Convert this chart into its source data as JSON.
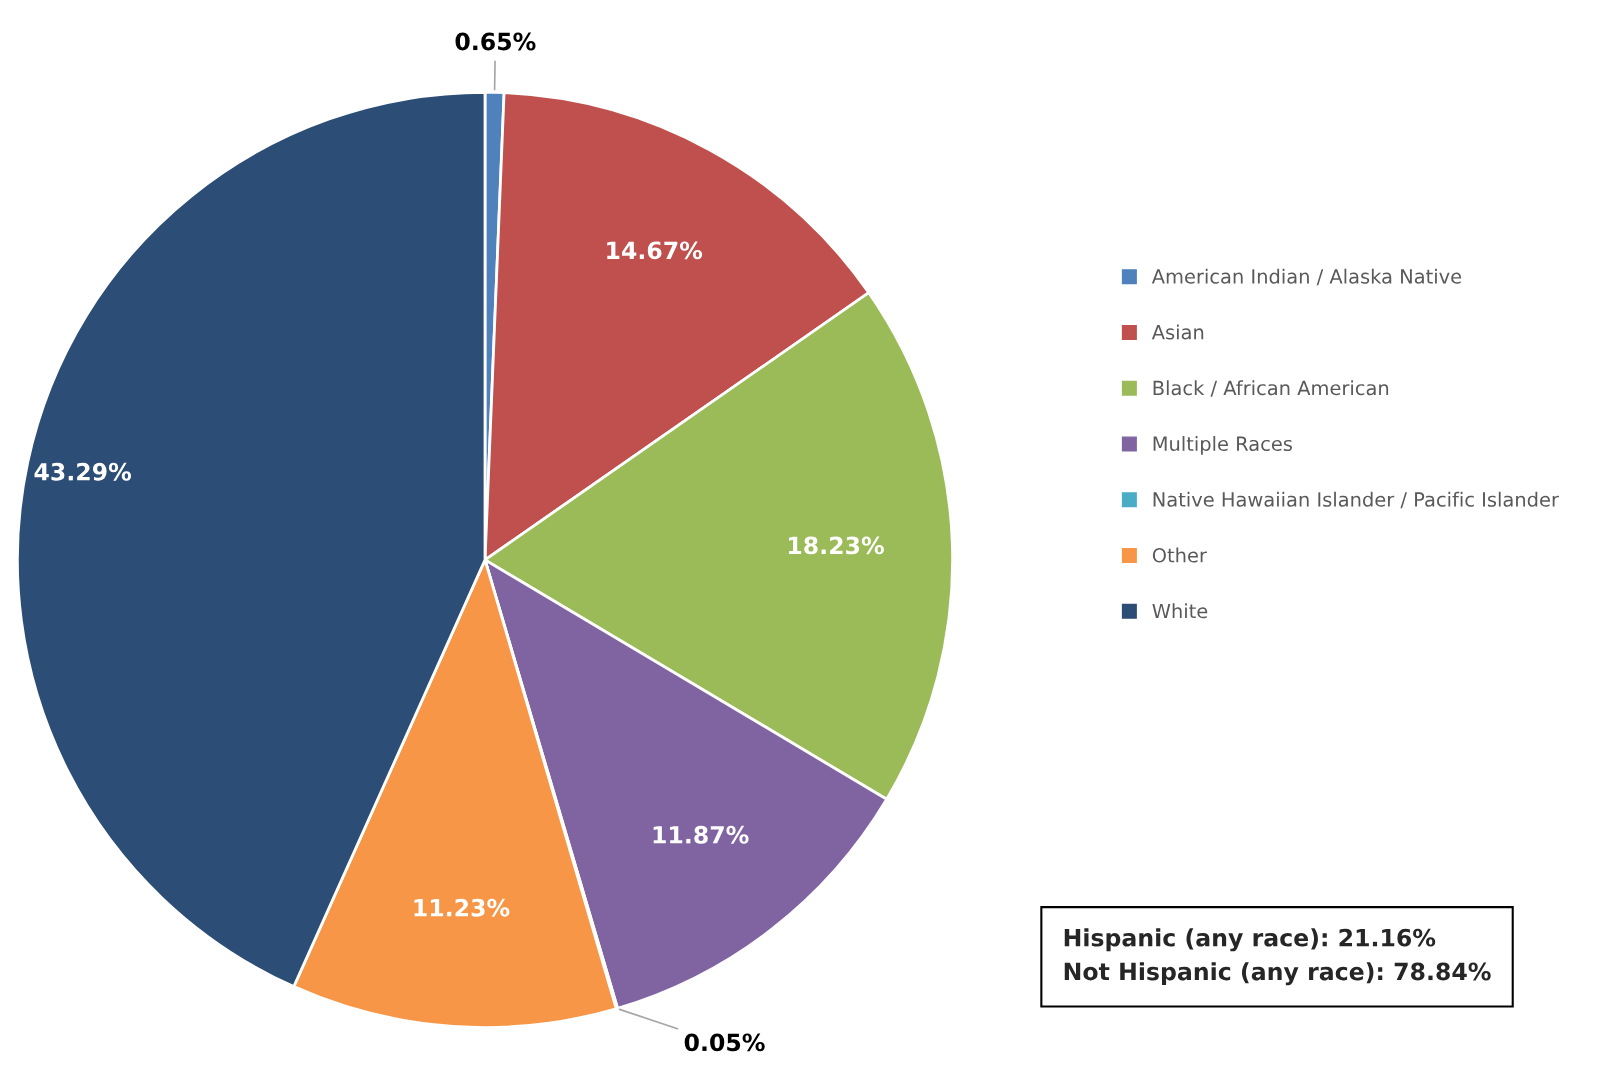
{
  "chart_data": {
    "type": "pie",
    "categories": [
      "American Indian / Alaska Native",
      "Asian",
      "Black / African American",
      "Multiple Races",
      "Native Hawaiian Islander / Pacific Islander",
      "Other",
      "White"
    ],
    "values": [
      0.65,
      14.67,
      18.23,
      11.87,
      0.05,
      11.23,
      43.29
    ],
    "colors": [
      "#4f81bd",
      "#c0504d",
      "#9bbb59",
      "#8064a2",
      "#4bacc6",
      "#f79646",
      "#2c4d75"
    ],
    "value_labels": [
      "0.65%",
      "14.67%",
      "18.23%",
      "11.87%",
      "0.05%",
      "11.23%",
      "43.29%"
    ],
    "legend": "right",
    "annotations": [
      "Hispanic (any race): 21.16%\nNot Hispanic (any race): 78.84%"
    ]
  }
}
